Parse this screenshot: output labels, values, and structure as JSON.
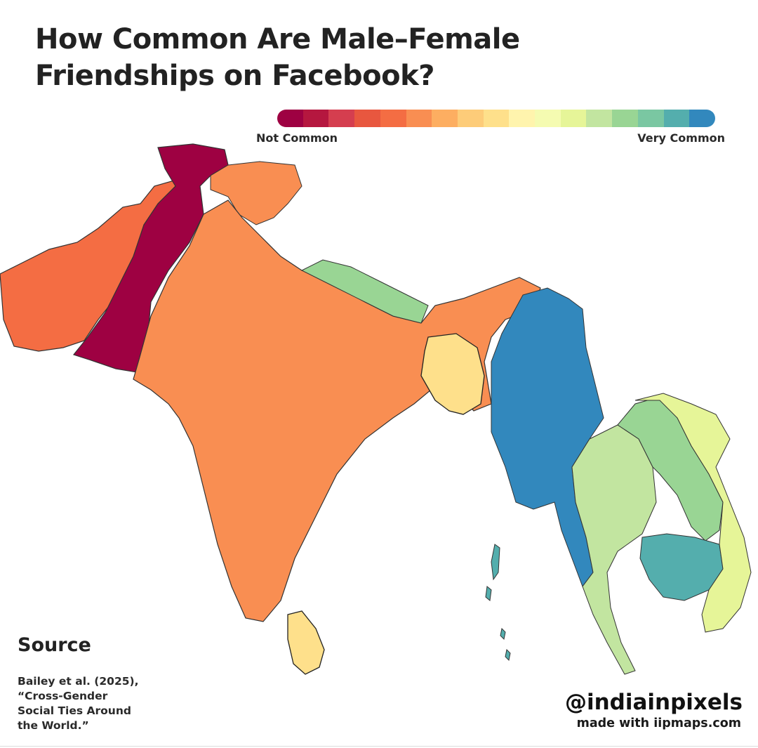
{
  "title": "How Common Are Male–Female Friendships on Facebook?",
  "legend": {
    "low_label": "Not Common",
    "high_label": "Very Common",
    "colors": [
      "#9e0142",
      "#b5173f",
      "#d53e4f",
      "#e8573f",
      "#f46d43",
      "#f98e52",
      "#fdae61",
      "#fdcc79",
      "#fee08b",
      "#fff4ad",
      "#f5fbb1",
      "#e6f598",
      "#c2e5a0",
      "#99d594",
      "#7ac7a2",
      "#54aead",
      "#3288bd"
    ]
  },
  "regions": [
    {
      "name": "Pakistan",
      "level": "Not Common",
      "color": "#9e0142"
    },
    {
      "name": "Afghanistan",
      "level": "Not Common",
      "color": "#f46d43"
    },
    {
      "name": "India",
      "level": "Not Common",
      "color": "#f98e52"
    },
    {
      "name": "Nepal",
      "level": "Very Common",
      "color": "#99d594"
    },
    {
      "name": "Bangladesh",
      "level": "Moderate",
      "color": "#fee08b"
    },
    {
      "name": "Sri Lanka",
      "level": "Moderate",
      "color": "#fee08b"
    },
    {
      "name": "Myanmar",
      "level": "Very Common",
      "color": "#3288bd"
    },
    {
      "name": "Thailand",
      "level": "Very Common",
      "color": "#c2e5a0"
    },
    {
      "name": "Laos",
      "level": "Very Common",
      "color": "#99d594"
    },
    {
      "name": "Cambodia",
      "level": "Very Common",
      "color": "#54aead"
    },
    {
      "name": "Vietnam",
      "level": "Very Common",
      "color": "#e6f598"
    }
  ],
  "source": {
    "heading": "Source",
    "citation": "Bailey et al. (2025),\n“Cross-Gender\nSocial Ties Around\nthe World.”"
  },
  "credit": {
    "handle": "@indiainpixels",
    "made_with": "made with iipmaps.com"
  }
}
